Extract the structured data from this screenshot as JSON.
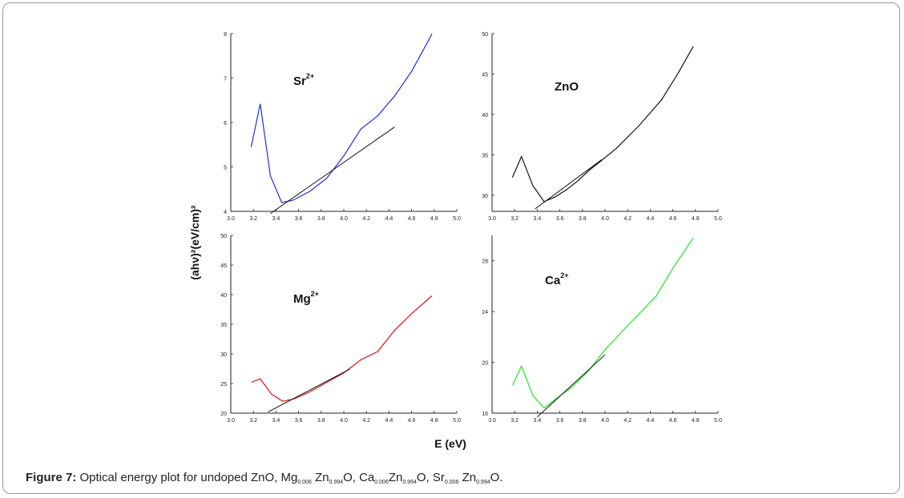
{
  "figure": {
    "y_axis_label": "(ahν)²(eV/cm)²",
    "x_axis_label": "E (eV)"
  },
  "caption": {
    "prefix": "Figure 7:",
    "text_before": "Optical energy plot for undoped ZnO, Mg",
    "mg_sub": "0.006",
    "zn1": "Zn",
    "zn1_sub": "0.994",
    "o1": "O, Ca",
    "ca_sub": "0.006",
    "zn2": "Zn",
    "zn2_sub": "0.994",
    "o2": "O, Sr",
    "sr_sub": "0.006",
    "zn3": " Zn",
    "zn3_sub": "0.994",
    "o3": "O."
  },
  "chart_data": [
    {
      "type": "line",
      "id": "sr",
      "label": "Sr",
      "label_sup": "2+",
      "color": "#1f2ee6",
      "xlim": [
        3.0,
        5.0
      ],
      "ylim": [
        4,
        8
      ],
      "xticks": [
        "3.0",
        "3.2",
        "3.4",
        "3.6",
        "3.8",
        "4.0",
        "4.2",
        "4.4",
        "4.6",
        "4.8",
        "5.0"
      ],
      "xtick_values": [
        3.0,
        3.2,
        3.4,
        3.6,
        3.8,
        4.0,
        4.2,
        4.4,
        4.6,
        4.8,
        5.0
      ],
      "yticks": [
        "4",
        "5",
        "6",
        "7",
        "8"
      ],
      "ytick_values": [
        4,
        5,
        6,
        7,
        8
      ],
      "series": {
        "x": [
          3.18,
          3.26,
          3.35,
          3.45,
          3.55,
          3.7,
          3.85,
          4.0,
          4.15,
          4.3,
          4.45,
          4.6,
          4.75,
          4.78
        ],
        "y": [
          5.45,
          6.42,
          4.8,
          4.2,
          4.25,
          4.45,
          4.75,
          5.25,
          5.85,
          6.15,
          6.6,
          7.15,
          7.85,
          8.0
        ]
      },
      "fit": {
        "x": [
          3.35,
          4.45
        ],
        "y": [
          3.95,
          5.9
        ]
      }
    },
    {
      "type": "line",
      "id": "zno",
      "label": "ZnO",
      "label_sup": "",
      "color": "#111111",
      "xlim": [
        3.0,
        5.0
      ],
      "ylim": [
        28,
        50
      ],
      "xticks": [
        "3.0",
        "3.2",
        "3.4",
        "3.6",
        "3.8",
        "4.0",
        "4.2",
        "4.4",
        "4.6",
        "4.8",
        "5.0"
      ],
      "xtick_values": [
        3.0,
        3.2,
        3.4,
        3.6,
        3.8,
        4.0,
        4.2,
        4.4,
        4.6,
        4.8,
        5.0
      ],
      "yticks": [
        "30",
        "35",
        "40",
        "45",
        "50"
      ],
      "ytick_values": [
        30,
        35,
        40,
        45,
        50
      ],
      "series": {
        "x": [
          3.18,
          3.26,
          3.36,
          3.46,
          3.56,
          3.66,
          3.76,
          3.86,
          3.96,
          4.1,
          4.3,
          4.5,
          4.65,
          4.78
        ],
        "y": [
          32.2,
          34.8,
          31.2,
          29.2,
          29.8,
          30.7,
          31.8,
          33.1,
          34.2,
          35.8,
          38.6,
          41.8,
          45.2,
          48.4
        ]
      },
      "fit": {
        "x": [
          3.38,
          3.97
        ],
        "y": [
          28.3,
          34.4
        ]
      }
    },
    {
      "type": "line",
      "id": "mg",
      "label": "Mg",
      "label_sup": "2+",
      "color": "#e01010",
      "xlim": [
        3.0,
        5.0
      ],
      "ylim": [
        20,
        50
      ],
      "xticks": [
        "3.0",
        "3.2",
        "3.4",
        "3.6",
        "3.8",
        "4.0",
        "4.2",
        "4.4",
        "4.6",
        "4.8",
        "5.0"
      ],
      "xtick_values": [
        3.0,
        3.2,
        3.4,
        3.6,
        3.8,
        4.0,
        4.2,
        4.4,
        4.6,
        4.8,
        5.0
      ],
      "yticks": [
        "20",
        "25",
        "30",
        "35",
        "40",
        "45",
        "50"
      ],
      "ytick_values": [
        20,
        25,
        30,
        35,
        40,
        45,
        50
      ],
      "series": {
        "x": [
          3.18,
          3.26,
          3.36,
          3.46,
          3.56,
          3.7,
          3.85,
          4.0,
          4.15,
          4.3,
          4.45,
          4.6,
          4.78
        ],
        "y": [
          25.2,
          25.8,
          23.2,
          22.0,
          22.4,
          23.6,
          25.2,
          26.8,
          29.0,
          30.4,
          34.0,
          36.8,
          39.8
        ]
      },
      "fit": {
        "x": [
          3.33,
          4.05
        ],
        "y": [
          20.2,
          27.4
        ]
      }
    },
    {
      "type": "line",
      "id": "ca",
      "label": "Ca",
      "label_sup": "2+",
      "color": "#22e622",
      "xlim": [
        3.0,
        5.0
      ],
      "ylim": [
        16,
        30
      ],
      "xticks": [
        "3.0",
        "3.2",
        "3.4",
        "3.6",
        "3.8",
        "4.0",
        "4.2",
        "4.4",
        "4.6",
        "4.8",
        "5.0"
      ],
      "xtick_values": [
        3.0,
        3.2,
        3.4,
        3.6,
        3.8,
        4.0,
        4.2,
        4.4,
        4.6,
        4.8,
        5.0
      ],
      "yticks": [
        "16",
        "20",
        "24",
        "28"
      ],
      "ytick_values": [
        16,
        20,
        24,
        28
      ],
      "series": {
        "x": [
          3.18,
          3.26,
          3.36,
          3.46,
          3.56,
          3.7,
          3.85,
          4.0,
          4.2,
          4.45,
          4.6,
          4.78
        ],
        "y": [
          18.2,
          19.7,
          17.4,
          16.4,
          17.1,
          18.0,
          19.3,
          21.0,
          22.9,
          25.2,
          27.4,
          29.8
        ]
      },
      "fit": {
        "x": [
          3.4,
          4.0
        ],
        "y": [
          15.7,
          20.6
        ]
      }
    }
  ]
}
